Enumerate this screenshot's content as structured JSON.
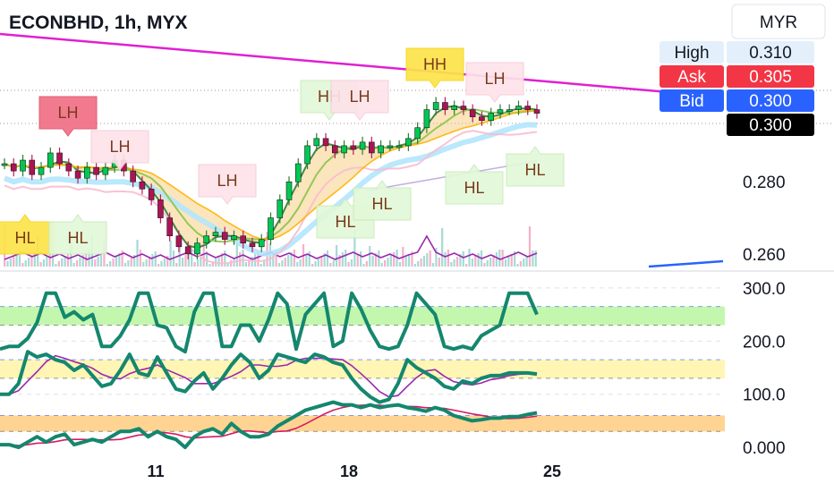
{
  "header": {
    "title": "ECONBHD, 1h, MYX",
    "currency": "MYR"
  },
  "colors": {
    "trend_magenta": "#e020d0",
    "trend_blue": "#2962ff",
    "up_candle": "#26a69a",
    "down_candle": "#c2185b",
    "osc_green": "#14876e",
    "osc_purple": "#9c27b0",
    "osc_red": "#d81b60",
    "zone_green": "#b9f6a0",
    "zone_yellow": "#fff3a8",
    "zone_orange": "#ffcc80"
  },
  "price_boxes": [
    {
      "label": "High",
      "value": "0.310",
      "label_bg": "#e3f0fb",
      "value_bg": "#e3f0fb",
      "fg": "#131722"
    },
    {
      "label": "Ask",
      "value": "0.305",
      "label_bg": "#f23645",
      "value_bg": "#f23645",
      "fg": "#ffffff"
    },
    {
      "label": "Bid",
      "value": "0.300",
      "label_bg": "#2962ff",
      "value_bg": "#2962ff",
      "fg": "#ffffff"
    },
    {
      "label": "",
      "value": "0.300",
      "label_bg": "",
      "value_bg": "#000000",
      "fg": "#ffffff"
    }
  ],
  "chart_data": [
    {
      "type": "line",
      "title": "ECONBHD, 1h, MYX",
      "x_ticks": [
        "11",
        "18",
        "25"
      ],
      "y_ticks": [
        0.28,
        0.26
      ],
      "ylim": [
        0.256,
        0.318
      ],
      "price_series": {
        "name": "",
        "values": [
          0.285,
          0.283,
          0.286,
          0.282,
          0.284,
          0.288,
          0.285,
          0.283,
          0.281,
          0.284,
          0.282,
          0.284,
          0.286,
          0.283,
          0.28,
          0.278,
          0.275,
          0.27,
          0.265,
          0.262,
          0.26,
          0.263,
          0.265,
          0.266,
          0.264,
          0.265,
          0.263,
          0.262,
          0.264,
          0.27,
          0.275,
          0.28,
          0.285,
          0.29,
          0.292,
          0.29,
          0.288,
          0.29,
          0.289,
          0.291,
          0.288,
          0.29,
          0.29,
          0.29,
          0.292,
          0.295,
          0.3,
          0.302,
          0.3,
          0.301,
          0.3,
          0.298,
          0.297,
          0.299,
          0.3,
          0.3,
          0.301,
          0.3,
          0.299
        ]
      },
      "annotations": [
        {
          "text": "LH",
          "style": "red"
        },
        {
          "text": "LH",
          "style": "pink"
        },
        {
          "text": "LH",
          "style": "pink"
        },
        {
          "text": "HH",
          "style": "lightgreen"
        },
        {
          "text": "LH",
          "style": "pink"
        },
        {
          "text": "HH",
          "style": "yellow"
        },
        {
          "text": "LH",
          "style": "pink"
        },
        {
          "text": "HL",
          "style": "yellow"
        },
        {
          "text": "HL",
          "style": "lightgreen"
        },
        {
          "text": "HL",
          "style": "lightgreen"
        },
        {
          "text": "HL",
          "style": "lightgreen"
        },
        {
          "text": "HL",
          "style": "lightgreen"
        },
        {
          "text": "HL",
          "style": "lightgreen"
        }
      ]
    },
    {
      "type": "line",
      "title": "",
      "y_ticks": [
        "300.0",
        "200.0",
        "100.0",
        "0.000"
      ],
      "ylim": [
        -20,
        320
      ],
      "zones": [
        {
          "from": 230,
          "to": 265,
          "color": "green"
        },
        {
          "from": 130,
          "to": 165,
          "color": "yellow"
        },
        {
          "from": 30,
          "to": 60,
          "color": "orange"
        }
      ],
      "series": [
        {
          "name": "",
          "values": [
            185,
            190,
            190,
            205,
            235,
            290,
            290,
            245,
            255,
            240,
            250,
            190,
            190,
            210,
            240,
            290,
            290,
            230,
            225,
            190,
            180,
            255,
            290,
            290,
            190,
            190,
            230,
            230,
            200,
            240,
            290,
            270,
            185,
            250,
            270,
            290,
            190,
            200,
            290,
            260,
            220,
            190,
            185,
            190,
            230,
            290,
            270,
            250,
            190,
            185,
            190,
            185,
            210,
            220,
            230,
            290,
            290,
            290,
            250
          ]
        },
        {
          "name": "",
          "values": [
            100,
            100,
            120,
            180,
            170,
            175,
            165,
            160,
            145,
            155,
            135,
            115,
            120,
            145,
            175,
            140,
            135,
            170,
            140,
            110,
            105,
            125,
            140,
            110,
            130,
            155,
            175,
            160,
            130,
            145,
            175,
            170,
            165,
            160,
            175,
            170,
            160,
            155,
            130,
            110,
            95,
            85,
            90,
            120,
            165,
            150,
            140,
            130,
            115,
            110,
            125,
            120,
            130,
            135,
            135,
            140,
            140,
            140,
            138
          ]
        },
        {
          "name": "",
          "values": [
            5,
            5,
            0,
            10,
            20,
            10,
            20,
            25,
            5,
            10,
            15,
            10,
            20,
            30,
            30,
            35,
            20,
            30,
            20,
            15,
            0,
            20,
            30,
            35,
            25,
            45,
            30,
            20,
            20,
            25,
            40,
            50,
            60,
            70,
            75,
            80,
            85,
            80,
            80,
            75,
            80,
            75,
            78,
            80,
            75,
            72,
            68,
            75,
            70,
            60,
            55,
            50,
            52,
            55,
            55,
            58,
            58,
            62,
            65
          ]
        }
      ]
    }
  ]
}
